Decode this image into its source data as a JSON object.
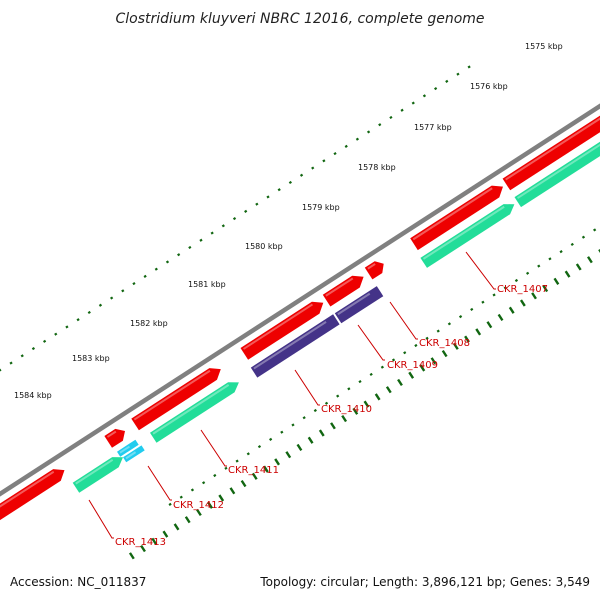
{
  "title": "Clostridium kluyveri NBRC 12016, complete genome",
  "kbp_labels": [
    "1575 kbp",
    "1576 kbp",
    "1577 kbp",
    "1578 kbp",
    "1579 kbp",
    "1580 kbp",
    "1581 kbp",
    "1582 kbp",
    "1583 kbp",
    "1584 kbp"
  ],
  "genes": [
    {
      "label": "CKR_1407"
    },
    {
      "label": "CKR_1408"
    },
    {
      "label": "CKR_1409"
    },
    {
      "label": "CKR_1410"
    },
    {
      "label": "CKR_1411"
    },
    {
      "label": "CKR_1412"
    },
    {
      "label": "CKR_1413"
    }
  ],
  "colors": {
    "backbone": "#808080",
    "cds": "#ee0000",
    "gene_feature": "#22dd99",
    "misc_feature": "#443388",
    "rna_feature": "#22ccee",
    "tick": "#116611",
    "label": "#cc0000"
  },
  "footer": {
    "accession": "Accession: NC_011837",
    "summary": "Topology: circular; Length: 3,896,121 bp; Genes: 3,549"
  }
}
